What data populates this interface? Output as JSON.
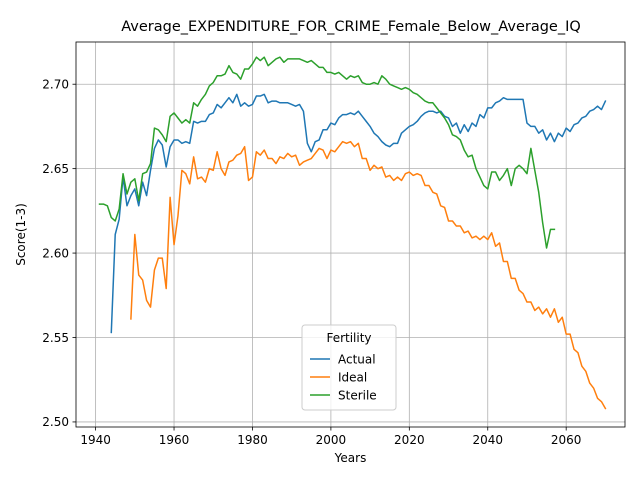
{
  "chart_data": {
    "type": "line",
    "title": "Average_EXPENDITURE_FOR_CRIME_Female_Below_Average_IQ",
    "xlabel": "Years",
    "ylabel": "Score(1-3)",
    "xlim": [
      1935,
      2075
    ],
    "ylim": [
      2.497,
      2.725
    ],
    "xticks": [
      1940,
      1960,
      1980,
      2000,
      2020,
      2040,
      2060
    ],
    "yticks": [
      2.5,
      2.55,
      2.6,
      2.65,
      2.7
    ],
    "xtick_labels": [
      "1940",
      "1960",
      "1980",
      "2000",
      "2020",
      "2040",
      "2060"
    ],
    "ytick_labels": [
      "2.50",
      "2.55",
      "2.60",
      "2.65",
      "2.70"
    ],
    "grid": true,
    "legend": {
      "title": "Fertility",
      "placement": "lower-center"
    },
    "series": [
      {
        "name": "Actual",
        "color": "#1f77b4",
        "x": [
          1944,
          1945,
          1946,
          1947,
          1948,
          1949,
          1950,
          1951,
          1952,
          1953,
          1954,
          1955,
          1956,
          1957,
          1958,
          1959,
          1960,
          1961,
          1962,
          1963,
          1964,
          1965,
          1966,
          1967,
          1968,
          1969,
          1970,
          1971,
          1972,
          1973,
          1974,
          1975,
          1976,
          1977,
          1978,
          1979,
          1980,
          1981,
          1982,
          1983,
          1984,
          1985,
          1986,
          1987,
          1988,
          1989,
          1990,
          1991,
          1992,
          1993,
          1994,
          1995,
          1996,
          1997,
          1998,
          1999,
          2000,
          2001,
          2002,
          2003,
          2004,
          2005,
          2006,
          2007,
          2008,
          2009,
          2010,
          2011,
          2012,
          2013,
          2014,
          2015,
          2016,
          2017,
          2018,
          2019,
          2020,
          2021,
          2022,
          2023,
          2024,
          2025,
          2026,
          2027,
          2028,
          2029,
          2030,
          2031,
          2032,
          2033,
          2034,
          2035,
          2036,
          2037,
          2038,
          2039,
          2040,
          2041,
          2042,
          2043,
          2044,
          2045,
          2046,
          2047,
          2048,
          2049,
          2050,
          2051,
          2052,
          2053,
          2054,
          2055,
          2056,
          2057,
          2058,
          2059,
          2060,
          2061,
          2062,
          2063,
          2064,
          2065,
          2066,
          2067,
          2068,
          2069,
          2070
        ],
        "y": [
          2.553,
          2.611,
          2.62,
          2.645,
          2.628,
          2.634,
          2.638,
          2.628,
          2.642,
          2.634,
          2.649,
          2.662,
          2.667,
          2.664,
          2.651,
          2.663,
          2.667,
          2.667,
          2.665,
          2.666,
          2.665,
          2.678,
          2.677,
          2.678,
          2.678,
          2.682,
          2.683,
          2.688,
          2.686,
          2.689,
          2.692,
          2.689,
          2.694,
          2.687,
          2.689,
          2.687,
          2.688,
          2.693,
          2.693,
          2.694,
          2.689,
          2.69,
          2.69,
          2.689,
          2.689,
          2.689,
          2.688,
          2.687,
          2.688,
          2.684,
          2.665,
          2.66,
          2.666,
          2.667,
          2.673,
          2.673,
          2.677,
          2.676,
          2.68,
          2.682,
          2.682,
          2.683,
          2.682,
          2.684,
          2.681,
          2.678,
          2.675,
          2.671,
          2.669,
          2.666,
          2.664,
          2.663,
          2.665,
          2.665,
          2.671,
          2.673,
          2.675,
          2.676,
          2.678,
          2.681,
          2.683,
          2.684,
          2.684,
          2.683,
          2.684,
          2.681,
          2.68,
          2.675,
          2.677,
          2.671,
          2.676,
          2.672,
          2.677,
          2.675,
          2.682,
          2.68,
          2.686,
          2.686,
          2.689,
          2.69,
          2.692,
          2.691,
          2.691,
          2.691,
          2.691,
          2.691,
          2.677,
          2.675,
          2.675,
          2.671,
          2.673,
          2.667,
          2.671,
          2.666,
          2.671,
          2.669,
          2.674,
          2.672,
          2.676,
          2.677,
          2.68,
          2.681,
          2.684,
          2.685,
          2.687,
          2.685,
          2.69
        ]
      },
      {
        "name": "Ideal",
        "color": "#ff7f0e",
        "x": [
          1949,
          1950,
          1951,
          1952,
          1953,
          1954,
          1955,
          1956,
          1957,
          1958,
          1959,
          1960,
          1961,
          1962,
          1963,
          1964,
          1965,
          1966,
          1967,
          1968,
          1969,
          1970,
          1971,
          1972,
          1973,
          1974,
          1975,
          1976,
          1977,
          1978,
          1979,
          1980,
          1981,
          1982,
          1983,
          1984,
          1985,
          1986,
          1987,
          1988,
          1989,
          1990,
          1991,
          1992,
          1993,
          1994,
          1995,
          1996,
          1997,
          1998,
          1999,
          2000,
          2001,
          2002,
          2003,
          2004,
          2005,
          2006,
          2007,
          2008,
          2009,
          2010,
          2011,
          2012,
          2013,
          2014,
          2015,
          2016,
          2017,
          2018,
          2019,
          2020,
          2021,
          2022,
          2023,
          2024,
          2025,
          2026,
          2027,
          2028,
          2029,
          2030,
          2031,
          2032,
          2033,
          2034,
          2035,
          2036,
          2037,
          2038,
          2039,
          2040,
          2041,
          2042,
          2043,
          2044,
          2045,
          2046,
          2047,
          2048,
          2049,
          2050,
          2051,
          2052,
          2053,
          2054,
          2055,
          2056,
          2057,
          2058,
          2059,
          2060,
          2061,
          2062,
          2063,
          2064,
          2065,
          2066,
          2067,
          2068,
          2069,
          2070
        ],
        "y": [
          2.561,
          2.611,
          2.587,
          2.584,
          2.572,
          2.568,
          2.59,
          2.597,
          2.597,
          2.579,
          2.633,
          2.605,
          2.622,
          2.649,
          2.647,
          2.641,
          2.657,
          2.644,
          2.645,
          2.642,
          2.65,
          2.649,
          2.66,
          2.65,
          2.646,
          2.654,
          2.655,
          2.658,
          2.659,
          2.663,
          2.643,
          2.645,
          2.66,
          2.658,
          2.661,
          2.656,
          2.656,
          2.653,
          2.657,
          2.656,
          2.659,
          2.657,
          2.658,
          2.652,
          2.654,
          2.655,
          2.656,
          2.659,
          2.662,
          2.661,
          2.656,
          2.661,
          2.66,
          2.663,
          2.666,
          2.665,
          2.666,
          2.663,
          2.665,
          2.656,
          2.656,
          2.649,
          2.652,
          2.65,
          2.651,
          2.645,
          2.646,
          2.643,
          2.645,
          2.643,
          2.647,
          2.648,
          2.646,
          2.647,
          2.646,
          2.64,
          2.64,
          2.636,
          2.635,
          2.628,
          2.627,
          2.619,
          2.619,
          2.616,
          2.616,
          2.612,
          2.613,
          2.609,
          2.61,
          2.608,
          2.61,
          2.608,
          2.612,
          2.604,
          2.606,
          2.595,
          2.595,
          2.585,
          2.585,
          2.578,
          2.576,
          2.571,
          2.571,
          2.566,
          2.568,
          2.564,
          2.567,
          2.562,
          2.567,
          2.559,
          2.562,
          2.552,
          2.552,
          2.543,
          2.541,
          2.533,
          2.53,
          2.523,
          2.52,
          2.514,
          2.512,
          2.508
        ]
      },
      {
        "name": "Sterile",
        "color": "#2ca02c",
        "x": [
          1941,
          1942,
          1943,
          1944,
          1945,
          1946,
          1947,
          1948,
          1949,
          1950,
          1951,
          1952,
          1953,
          1954,
          1955,
          1956,
          1957,
          1958,
          1959,
          1960,
          1961,
          1962,
          1963,
          1964,
          1965,
          1966,
          1967,
          1968,
          1969,
          1970,
          1971,
          1972,
          1973,
          1974,
          1975,
          1976,
          1977,
          1978,
          1979,
          1980,
          1981,
          1982,
          1983,
          1984,
          1985,
          1986,
          1987,
          1988,
          1989,
          1990,
          1991,
          1992,
          1993,
          1994,
          1995,
          1996,
          1997,
          1998,
          1999,
          2000,
          2001,
          2002,
          2003,
          2004,
          2005,
          2006,
          2007,
          2008,
          2009,
          2010,
          2011,
          2012,
          2013,
          2014,
          2015,
          2016,
          2017,
          2018,
          2019,
          2020,
          2021,
          2022,
          2023,
          2024,
          2025,
          2026,
          2027,
          2028,
          2029,
          2030,
          2031,
          2032,
          2033,
          2034,
          2035,
          2036,
          2037,
          2038,
          2039,
          2040,
          2041,
          2042,
          2043,
          2044,
          2045,
          2046,
          2047,
          2048,
          2049,
          2050,
          2051,
          2052,
          2053,
          2054,
          2055,
          2056,
          2057
        ],
        "y": [
          2.629,
          2.629,
          2.628,
          2.621,
          2.619,
          2.626,
          2.647,
          2.635,
          2.642,
          2.644,
          2.631,
          2.647,
          2.648,
          2.653,
          2.674,
          2.673,
          2.67,
          2.666,
          2.681,
          2.683,
          2.68,
          2.677,
          2.679,
          2.677,
          2.689,
          2.687,
          2.691,
          2.694,
          2.699,
          2.701,
          2.705,
          2.705,
          2.706,
          2.711,
          2.707,
          2.706,
          2.703,
          2.709,
          2.709,
          2.712,
          2.716,
          2.714,
          2.716,
          2.711,
          2.713,
          2.715,
          2.716,
          2.713,
          2.715,
          2.715,
          2.715,
          2.715,
          2.714,
          2.713,
          2.714,
          2.712,
          2.71,
          2.71,
          2.707,
          2.707,
          2.706,
          2.707,
          2.705,
          2.703,
          2.705,
          2.704,
          2.705,
          2.701,
          2.7,
          2.7,
          2.701,
          2.7,
          2.705,
          2.703,
          2.7,
          2.699,
          2.698,
          2.697,
          2.698,
          2.697,
          2.695,
          2.694,
          2.692,
          2.69,
          2.689,
          2.689,
          2.686,
          2.683,
          2.68,
          2.676,
          2.67,
          2.669,
          2.667,
          2.661,
          2.657,
          2.658,
          2.65,
          2.645,
          2.64,
          2.638,
          2.648,
          2.648,
          2.643,
          2.646,
          2.65,
          2.64,
          2.65,
          2.652,
          2.65,
          2.647,
          2.662,
          2.649,
          2.636,
          2.618,
          2.603,
          2.614,
          2.614
        ]
      }
    ]
  }
}
